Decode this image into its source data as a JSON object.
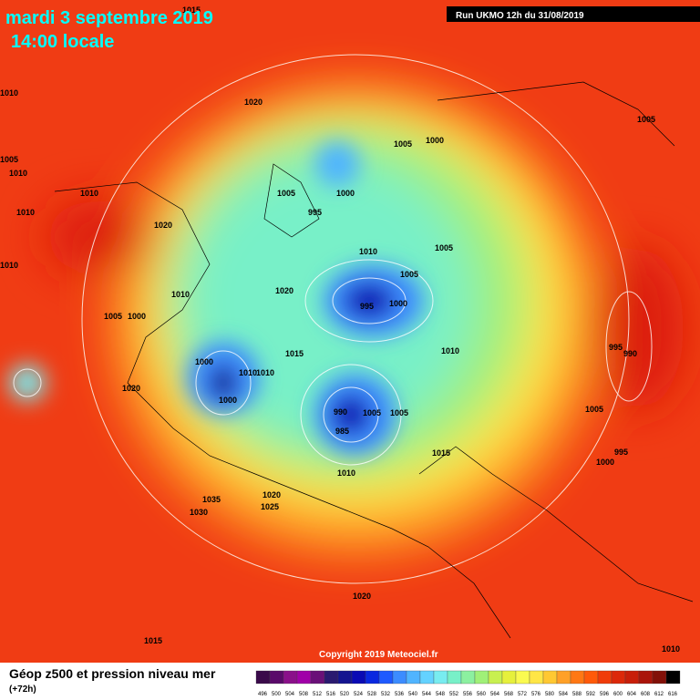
{
  "header": {
    "date": "mardi 3 septembre 2019",
    "time": "14:00 locale"
  },
  "run_info": "Run UKMO 12h du 31/08/2019",
  "copyright": "Copyright 2019 Meteociel.fr",
  "map": {
    "isobar_labels": [
      1015,
      1010,
      1020,
      1005,
      1000,
      1005,
      1005,
      1010,
      1010,
      1005,
      1000,
      995,
      1020,
      1010,
      1010,
      1005,
      1005,
      1010,
      1010,
      1020,
      995,
      1000,
      1005,
      1000,
      1015,
      1010,
      995,
      990,
      1000,
      1010,
      1010,
      1020,
      1000,
      990,
      985,
      1005,
      1005,
      1015,
      1000,
      995,
      1005,
      1010,
      1035,
      1030,
      1020,
      1025,
      1020,
      1015,
      1010
    ]
  },
  "legend": {
    "title": "Géop z500 et pression niveau mer",
    "lead_time": "(+72h)",
    "scale_labels": [
      496,
      500,
      504,
      508,
      512,
      516,
      520,
      524,
      528,
      532,
      536,
      540,
      544,
      548,
      552,
      556,
      560,
      564,
      568,
      572,
      576,
      580,
      584,
      588,
      592,
      596,
      600,
      604,
      608,
      612,
      616
    ],
    "colors": [
      "#3a0a4a",
      "#5a0a6a",
      "#8a108a",
      "#a000a8",
      "#6a1078",
      "#2a1a70",
      "#141490",
      "#0a0ab4",
      "#0a28e0",
      "#1e5aff",
      "#3c8cff",
      "#50b4ff",
      "#64d2ff",
      "#78ecf0",
      "#78f0c8",
      "#8cf0a0",
      "#a0f078",
      "#c8f050",
      "#e6f03c",
      "#fafa50",
      "#ffe646",
      "#ffc832",
      "#ffa028",
      "#ff7814",
      "#ff5a0a",
      "#f03c0a",
      "#dc280a",
      "#c81e0a",
      "#aa140a",
      "#821008",
      "#000000"
    ]
  }
}
